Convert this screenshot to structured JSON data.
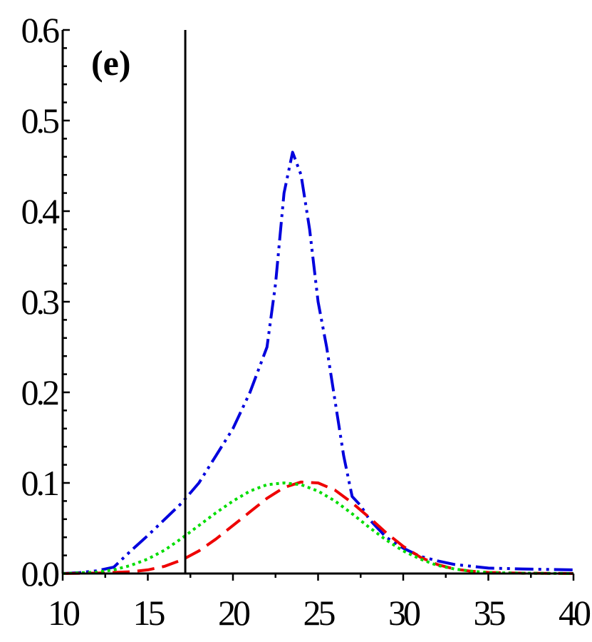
{
  "chart_data": {
    "type": "line",
    "panel_label": "(e)",
    "xlim": [
      10,
      40
    ],
    "ylim": [
      0,
      0.6
    ],
    "x_ticks": [
      {
        "value": 10,
        "label": "10"
      },
      {
        "value": 15,
        "label": "15"
      },
      {
        "value": 20,
        "label": "20"
      },
      {
        "value": 25,
        "label": "25"
      },
      {
        "value": 30,
        "label": "30"
      },
      {
        "value": 35,
        "label": "35"
      },
      {
        "value": 40,
        "label": "40"
      }
    ],
    "y_ticks": [
      {
        "value": 0.0,
        "label": "0.0"
      },
      {
        "value": 0.1,
        "label": "0.1"
      },
      {
        "value": 0.2,
        "label": "0.2"
      },
      {
        "value": 0.3,
        "label": "0.3"
      },
      {
        "value": 0.4,
        "label": "0.4"
      },
      {
        "value": 0.5,
        "label": "0.5"
      },
      {
        "value": 0.6,
        "label": "0.6"
      }
    ],
    "vertical_line_x": 17.2,
    "grid": false,
    "legend": "none",
    "series": [
      {
        "color": "#0000dd",
        "dash": "dash-dot-dot",
        "points": [
          [
            10,
            0.0
          ],
          [
            11,
            0.001
          ],
          [
            12,
            0.003
          ],
          [
            13,
            0.007
          ],
          [
            14,
            0.025
          ],
          [
            15,
            0.042
          ],
          [
            16,
            0.06
          ],
          [
            17,
            0.078
          ],
          [
            18,
            0.1
          ],
          [
            19,
            0.13
          ],
          [
            20,
            0.16
          ],
          [
            21,
            0.2
          ],
          [
            22,
            0.25
          ],
          [
            22.5,
            0.32
          ],
          [
            23,
            0.42
          ],
          [
            23.5,
            0.465
          ],
          [
            24,
            0.44
          ],
          [
            24.5,
            0.38
          ],
          [
            25,
            0.3
          ],
          [
            25.5,
            0.25
          ],
          [
            26,
            0.19
          ],
          [
            26.5,
            0.13
          ],
          [
            27,
            0.085
          ],
          [
            27.5,
            0.075
          ],
          [
            28,
            0.06
          ],
          [
            29,
            0.04
          ],
          [
            30,
            0.028
          ],
          [
            31,
            0.019
          ],
          [
            32,
            0.014
          ],
          [
            33,
            0.01
          ],
          [
            34,
            0.008
          ],
          [
            35,
            0.006
          ],
          [
            37,
            0.005
          ],
          [
            40,
            0.004
          ]
        ]
      },
      {
        "color": "#ee0000",
        "dash": "dashed",
        "points": [
          [
            10,
            0.0
          ],
          [
            12,
            0.0005
          ],
          [
            14,
            0.002
          ],
          [
            15,
            0.004
          ],
          [
            16,
            0.008
          ],
          [
            17,
            0.015
          ],
          [
            18,
            0.025
          ],
          [
            19,
            0.038
          ],
          [
            20,
            0.053
          ],
          [
            21,
            0.068
          ],
          [
            22,
            0.083
          ],
          [
            23,
            0.095
          ],
          [
            24,
            0.101
          ],
          [
            25,
            0.1
          ],
          [
            26,
            0.092
          ],
          [
            27,
            0.078
          ],
          [
            28,
            0.062
          ],
          [
            29,
            0.045
          ],
          [
            30,
            0.03
          ],
          [
            31,
            0.018
          ],
          [
            32,
            0.01
          ],
          [
            33,
            0.005
          ],
          [
            34,
            0.0025
          ],
          [
            35,
            0.0012
          ],
          [
            37,
            0.0003
          ],
          [
            40,
            0.0
          ]
        ]
      },
      {
        "color": "#00dd00",
        "dash": "dotted",
        "points": [
          [
            10,
            0.0
          ],
          [
            12,
            0.0015
          ],
          [
            13,
            0.004
          ],
          [
            14,
            0.009
          ],
          [
            15,
            0.016
          ],
          [
            16,
            0.026
          ],
          [
            17,
            0.039
          ],
          [
            18,
            0.053
          ],
          [
            19,
            0.067
          ],
          [
            20,
            0.08
          ],
          [
            21,
            0.091
          ],
          [
            22,
            0.098
          ],
          [
            23,
            0.1
          ],
          [
            24,
            0.098
          ],
          [
            25,
            0.091
          ],
          [
            26,
            0.08
          ],
          [
            27,
            0.066
          ],
          [
            28,
            0.051
          ],
          [
            29,
            0.037
          ],
          [
            30,
            0.025
          ],
          [
            31,
            0.016
          ],
          [
            32,
            0.009
          ],
          [
            33,
            0.005
          ],
          [
            34,
            0.0025
          ],
          [
            35,
            0.001
          ],
          [
            37,
            0.0003
          ],
          [
            40,
            0.0
          ]
        ]
      }
    ]
  }
}
